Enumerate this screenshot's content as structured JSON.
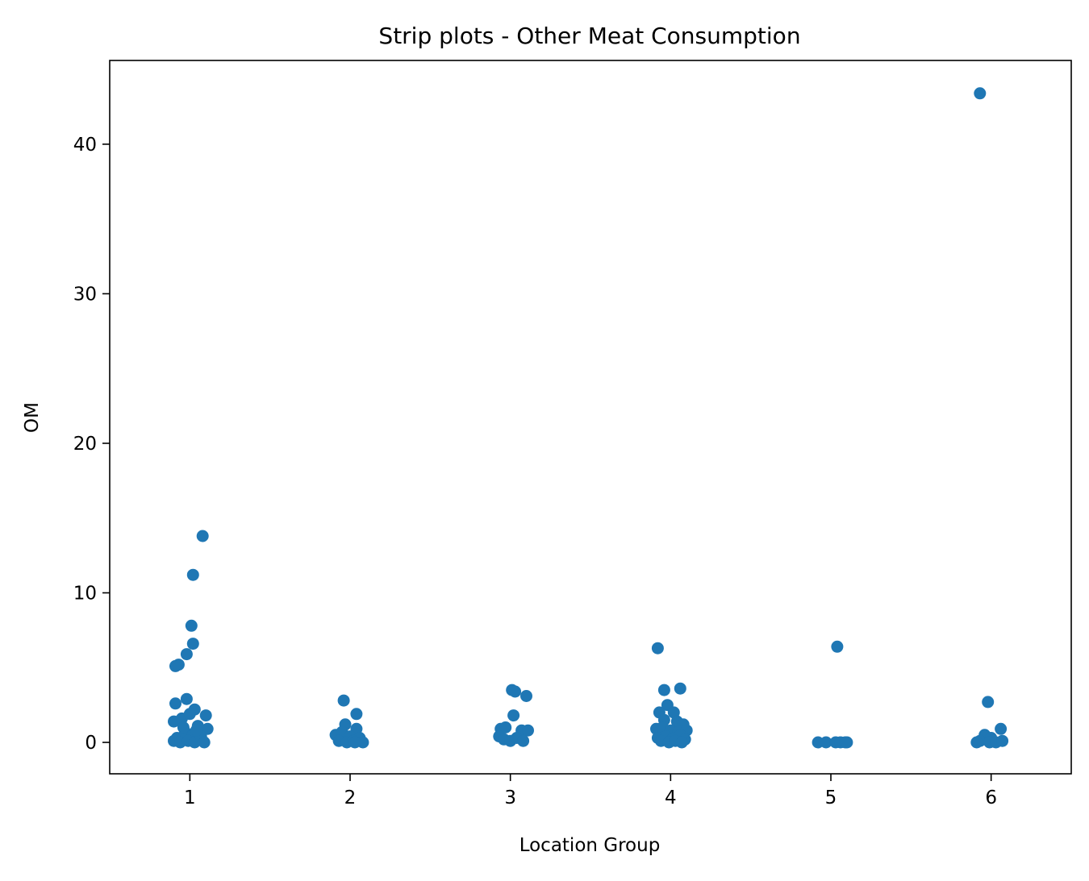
{
  "chart_data": {
    "type": "scatter",
    "subtype": "strip",
    "title": "Strip plots - Other Meat Consumption",
    "xlabel": "Location Group",
    "ylabel": "OM",
    "categories": [
      "1",
      "2",
      "3",
      "4",
      "5",
      "6"
    ],
    "xlim": [
      0.5,
      6.5
    ],
    "ylim": [
      -2.1,
      45.6
    ],
    "yticks": [
      0,
      10,
      20,
      30,
      40
    ],
    "ytick_labels": [
      "0",
      "10",
      "20",
      "30",
      "40"
    ],
    "grid": false,
    "legend": "none",
    "colors": {
      "points": "#1f77b4",
      "axes": "#000000",
      "background": "#ffffff"
    },
    "points": [
      {
        "x": 0.91,
        "y": 5.1
      },
      {
        "x": 0.93,
        "y": 5.2
      },
      {
        "x": 0.98,
        "y": 5.9
      },
      {
        "x": 1.01,
        "y": 7.8
      },
      {
        "x": 1.02,
        "y": 6.6
      },
      {
        "x": 1.02,
        "y": 11.2
      },
      {
        "x": 1.08,
        "y": 13.8
      },
      {
        "x": 0.91,
        "y": 2.6
      },
      {
        "x": 0.98,
        "y": 2.9
      },
      {
        "x": 1.03,
        "y": 2.2
      },
      {
        "x": 1.1,
        "y": 1.8
      },
      {
        "x": 0.9,
        "y": 1.4
      },
      {
        "x": 0.95,
        "y": 1.6
      },
      {
        "x": 1.0,
        "y": 1.9
      },
      {
        "x": 1.05,
        "y": 1.1
      },
      {
        "x": 0.92,
        "y": 0.3
      },
      {
        "x": 0.97,
        "y": 0.7
      },
      {
        "x": 1.02,
        "y": 0.5
      },
      {
        "x": 1.06,
        "y": 0.2
      },
      {
        "x": 1.11,
        "y": 0.9
      },
      {
        "x": 0.9,
        "y": 0.1
      },
      {
        "x": 0.94,
        "y": 0.0
      },
      {
        "x": 0.99,
        "y": 0.1
      },
      {
        "x": 1.03,
        "y": 0.0
      },
      {
        "x": 1.07,
        "y": 0.4
      },
      {
        "x": 1.09,
        "y": 0.0
      },
      {
        "x": 0.96,
        "y": 1.0
      },
      {
        "x": 1.04,
        "y": 0.8
      },
      {
        "x": 1.96,
        "y": 2.8
      },
      {
        "x": 2.04,
        "y": 1.9
      },
      {
        "x": 1.97,
        "y": 1.2
      },
      {
        "x": 2.04,
        "y": 0.9
      },
      {
        "x": 1.91,
        "y": 0.5
      },
      {
        "x": 1.95,
        "y": 0.7
      },
      {
        "x": 2.0,
        "y": 0.4
      },
      {
        "x": 2.06,
        "y": 0.3
      },
      {
        "x": 1.93,
        "y": 0.1
      },
      {
        "x": 1.98,
        "y": 0.0
      },
      {
        "x": 2.02,
        "y": 0.1
      },
      {
        "x": 2.08,
        "y": 0.0
      },
      {
        "x": 2.03,
        "y": 0.0
      },
      {
        "x": 3.01,
        "y": 3.5
      },
      {
        "x": 3.03,
        "y": 3.4
      },
      {
        "x": 3.1,
        "y": 3.1
      },
      {
        "x": 3.02,
        "y": 1.8
      },
      {
        "x": 2.94,
        "y": 0.9
      },
      {
        "x": 2.97,
        "y": 1.0
      },
      {
        "x": 3.07,
        "y": 0.8
      },
      {
        "x": 3.11,
        "y": 0.8
      },
      {
        "x": 2.93,
        "y": 0.4
      },
      {
        "x": 2.96,
        "y": 0.2
      },
      {
        "x": 3.0,
        "y": 0.1
      },
      {
        "x": 3.04,
        "y": 0.3
      },
      {
        "x": 3.08,
        "y": 0.1
      },
      {
        "x": 3.92,
        "y": 6.3
      },
      {
        "x": 3.96,
        "y": 3.5
      },
      {
        "x": 4.06,
        "y": 3.6
      },
      {
        "x": 3.98,
        "y": 2.5
      },
      {
        "x": 3.93,
        "y": 2.0
      },
      {
        "x": 4.02,
        "y": 2.0
      },
      {
        "x": 3.96,
        "y": 1.5
      },
      {
        "x": 4.04,
        "y": 1.4
      },
      {
        "x": 4.08,
        "y": 1.2
      },
      {
        "x": 3.91,
        "y": 0.9
      },
      {
        "x": 3.95,
        "y": 1.0
      },
      {
        "x": 4.0,
        "y": 0.8
      },
      {
        "x": 4.05,
        "y": 0.7
      },
      {
        "x": 4.1,
        "y": 0.8
      },
      {
        "x": 3.92,
        "y": 0.3
      },
      {
        "x": 3.97,
        "y": 0.4
      },
      {
        "x": 4.01,
        "y": 0.2
      },
      {
        "x": 4.06,
        "y": 0.5
      },
      {
        "x": 4.09,
        "y": 0.2
      },
      {
        "x": 3.94,
        "y": 0.1
      },
      {
        "x": 3.99,
        "y": 0.0
      },
      {
        "x": 4.03,
        "y": 0.1
      },
      {
        "x": 4.07,
        "y": 0.0
      },
      {
        "x": 5.04,
        "y": 6.4
      },
      {
        "x": 4.92,
        "y": 0.0
      },
      {
        "x": 4.97,
        "y": 0.0
      },
      {
        "x": 5.03,
        "y": 0.0
      },
      {
        "x": 5.06,
        "y": 0.0
      },
      {
        "x": 5.09,
        "y": 0.0
      },
      {
        "x": 5.1,
        "y": 0.0
      },
      {
        "x": 5.93,
        "y": 43.4
      },
      {
        "x": 5.98,
        "y": 2.7
      },
      {
        "x": 6.06,
        "y": 0.9
      },
      {
        "x": 5.96,
        "y": 0.5
      },
      {
        "x": 6.0,
        "y": 0.3
      },
      {
        "x": 5.93,
        "y": 0.1
      },
      {
        "x": 5.99,
        "y": 0.0
      },
      {
        "x": 6.03,
        "y": 0.0
      },
      {
        "x": 6.07,
        "y": 0.1
      },
      {
        "x": 5.91,
        "y": 0.0
      }
    ]
  }
}
